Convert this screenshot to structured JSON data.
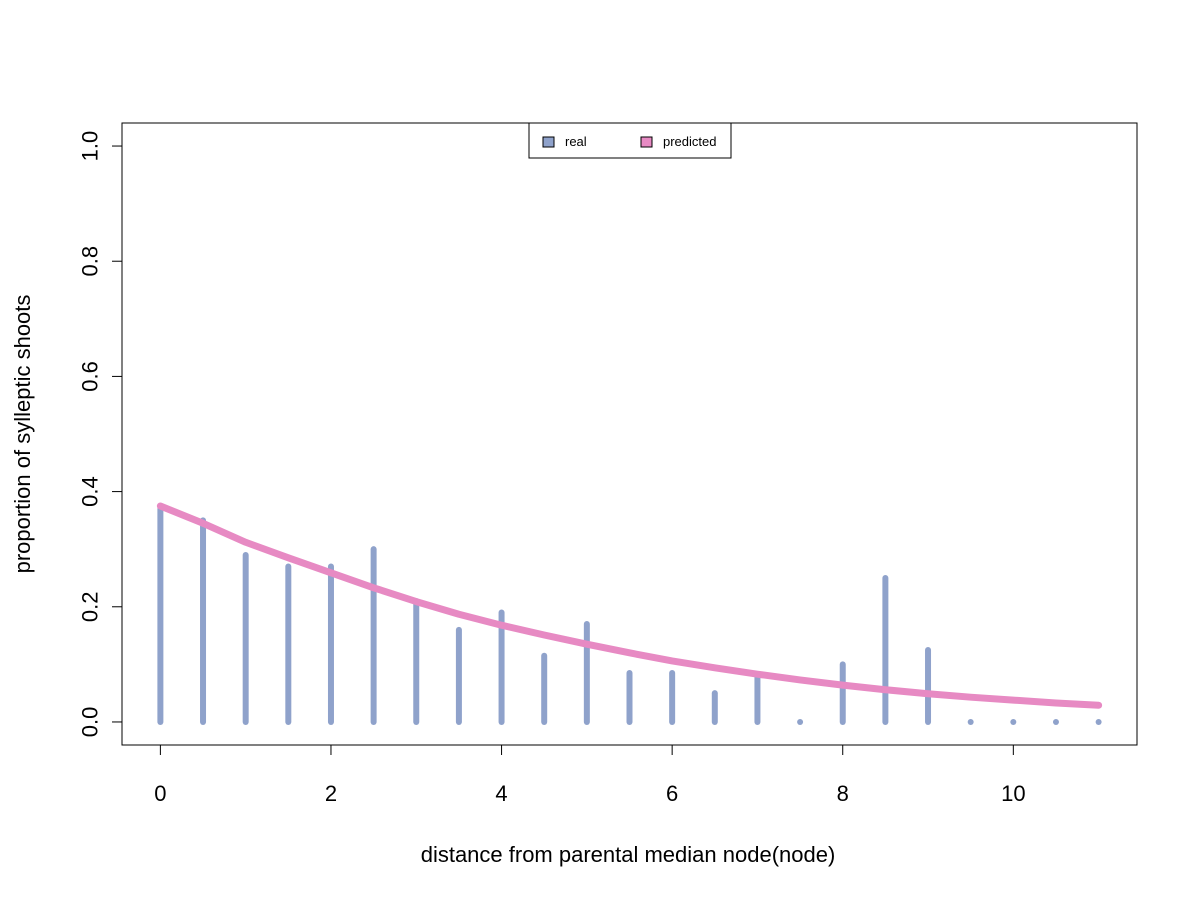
{
  "chart_data": {
    "type": "bar",
    "xlabel": "distance from parental median node(node)",
    "ylabel": "proportion of sylleptic shoots",
    "xlim": [
      -0.45,
      11.45
    ],
    "ylim": [
      -0.04,
      1.04
    ],
    "x_ticks": [
      0,
      2,
      4,
      6,
      8,
      10
    ],
    "y_ticks": [
      0.0,
      0.2,
      0.4,
      0.6,
      0.8,
      1.0
    ],
    "x_tick_labels": [
      "0",
      "2",
      "4",
      "6",
      "8",
      "10"
    ],
    "y_tick_labels": [
      "0.0",
      "0.2",
      "0.4",
      "0.6",
      "0.8",
      "1.0"
    ],
    "legend_position": "top-center",
    "grid": false,
    "series": [
      {
        "name": "real",
        "kind": "bars",
        "color": "#8fa2cb",
        "x": [
          0,
          0.5,
          1,
          1.5,
          2,
          2.5,
          3,
          3.5,
          4,
          4.5,
          5,
          5.5,
          6,
          6.5,
          7,
          7.5,
          8,
          8.5,
          9,
          9.5,
          10,
          10.5,
          11
        ],
        "values": [
          0.37,
          0.35,
          0.29,
          0.27,
          0.27,
          0.3,
          0.21,
          0.16,
          0.19,
          0.115,
          0.17,
          0.085,
          0.085,
          0.05,
          0.08,
          0.0,
          0.1,
          0.25,
          0.125,
          0.0,
          0.0,
          0.0,
          0.0
        ]
      },
      {
        "name": "predicted",
        "kind": "line",
        "color": "#e78ac3",
        "x": [
          0,
          0.5,
          1,
          1.5,
          2,
          2.5,
          3,
          3.5,
          4,
          4.5,
          5,
          5.5,
          6,
          6.5,
          7,
          7.5,
          8,
          8.5,
          9,
          9.5,
          10,
          10.5,
          11
        ],
        "values": [
          0.375,
          0.345,
          0.312,
          0.285,
          0.259,
          0.233,
          0.209,
          0.187,
          0.168,
          0.151,
          0.135,
          0.12,
          0.106,
          0.094,
          0.083,
          0.073,
          0.064,
          0.056,
          0.049,
          0.043,
          0.038,
          0.033,
          0.029
        ]
      }
    ]
  }
}
